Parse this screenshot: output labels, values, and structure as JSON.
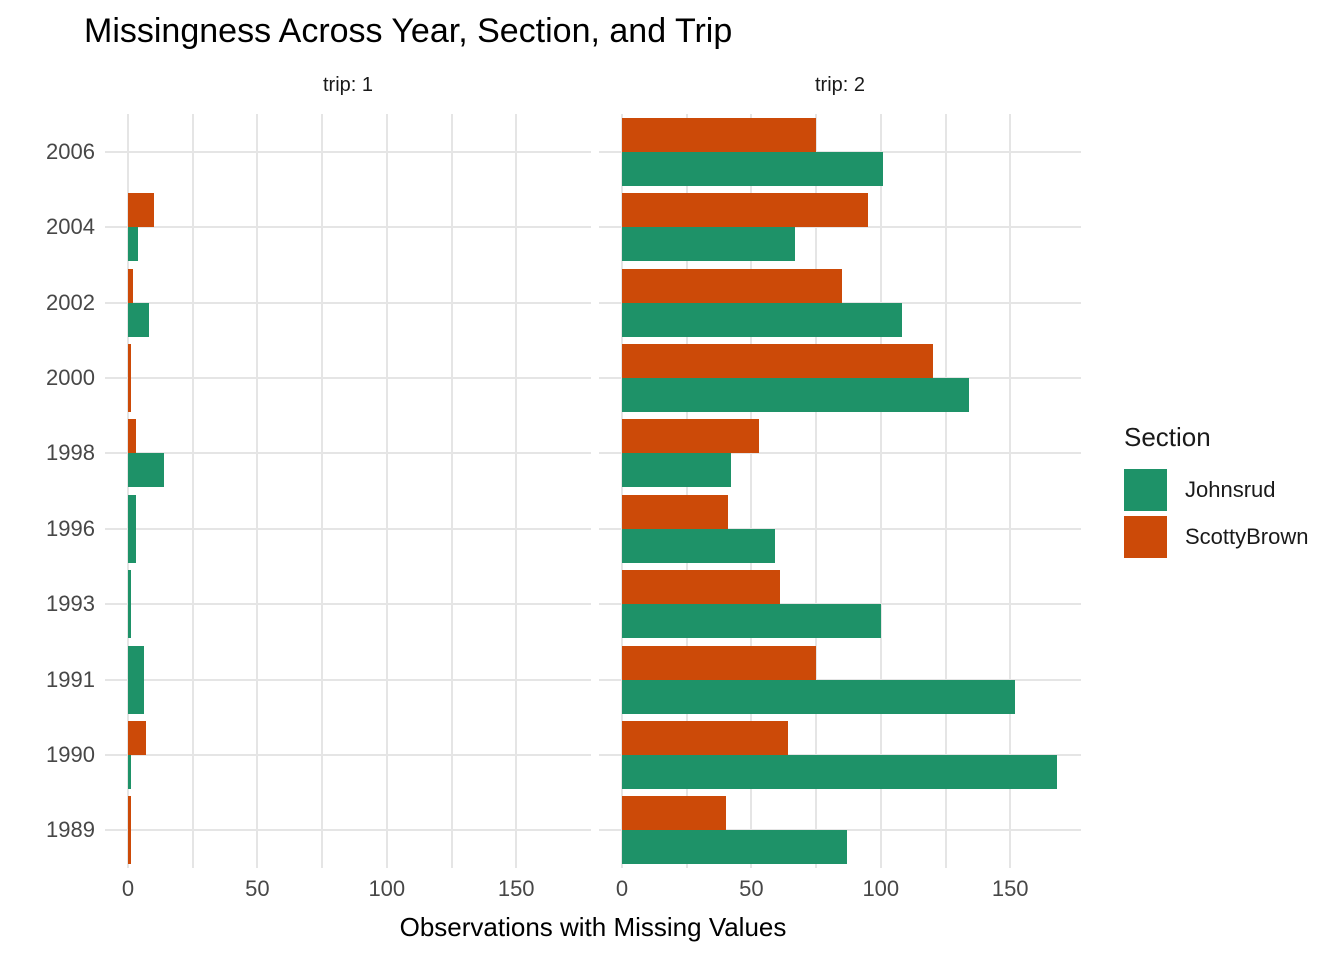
{
  "title": "Missingness Across Year, Section, and Trip",
  "x_axis_title": "Observations with Missing Values",
  "legend": {
    "title": "Section",
    "items": [
      {
        "label": "Johnsrud",
        "color": "#1e9268"
      },
      {
        "label": "ScottyBrown",
        "color": "#cc4a08"
      }
    ]
  },
  "style": {
    "gridline_color": "#e5e5e5",
    "background": "#ffffff",
    "tick_text_color": "#474747"
  },
  "chart_data": {
    "type": "bar",
    "orientation": "horizontal",
    "grid": true,
    "legend_position": "right",
    "xlim": [
      0,
      180
    ],
    "x_ticks": [
      0,
      50,
      100,
      150
    ],
    "x_grid_step": 25,
    "categories": [
      "2006",
      "2004",
      "2002",
      "2000",
      "1998",
      "1996",
      "1993",
      "1991",
      "1990",
      "1989"
    ],
    "facets": [
      {
        "label": "trip: 1",
        "series": [
          {
            "name": "ScottyBrown",
            "values": [
              null,
              10,
              2,
              1,
              3,
              null,
              null,
              null,
              7,
              1
            ]
          },
          {
            "name": "Johnsrud",
            "values": [
              null,
              4,
              8,
              null,
              14,
              3,
              1,
              6,
              1,
              null
            ]
          }
        ]
      },
      {
        "label": "trip: 2",
        "series": [
          {
            "name": "ScottyBrown",
            "values": [
              75,
              95,
              85,
              120,
              53,
              41,
              61,
              75,
              64,
              40
            ]
          },
          {
            "name": "Johnsrud",
            "values": [
              101,
              67,
              108,
              134,
              42,
              59,
              100,
              152,
              168,
              87
            ]
          }
        ]
      }
    ]
  }
}
